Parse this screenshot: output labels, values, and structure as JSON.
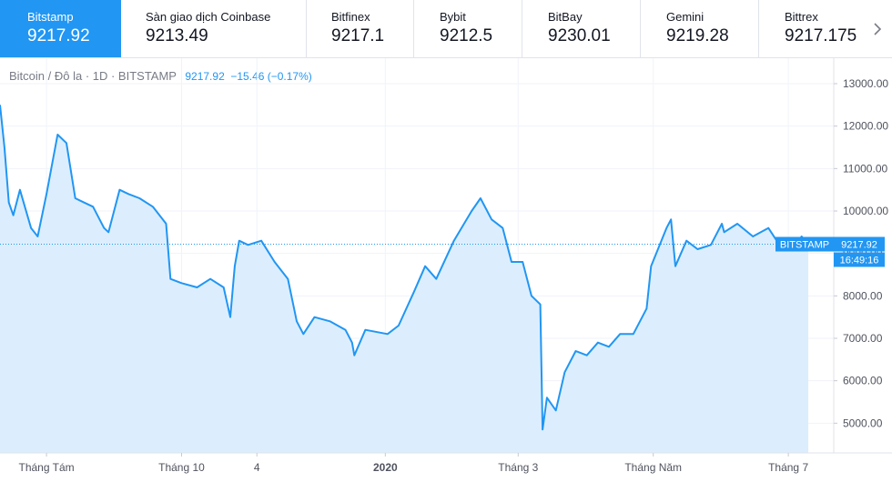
{
  "tabs": [
    {
      "name": "Bitstamp",
      "price": "9217.92",
      "active": true
    },
    {
      "name": "Sàn giao dịch Coinbase",
      "price": "9213.49"
    },
    {
      "name": "Bitfinex",
      "price": "9217.1"
    },
    {
      "name": "Bybit",
      "price": "9212.5"
    },
    {
      "name": "BitBay",
      "price": "9230.01"
    },
    {
      "name": "Gemini",
      "price": "9219.28"
    },
    {
      "name": "Bittrex",
      "price": "9217.175"
    }
  ],
  "next_icon": "chevron-right-icon",
  "legend": {
    "symbol": "Bitcoin / Đô la · 1D · BITSTAMP",
    "last": "9217.92",
    "change": "−15.46 (−0.17%)"
  },
  "price_label": {
    "tag": "BITSTAMP",
    "value": "9217.92",
    "countdown": "16:49:16"
  },
  "colors": {
    "line": "#2196f3",
    "fill": "#dceefd",
    "accent": "#2196f3",
    "axis_text": "#787b86",
    "grid": "#f0f3fa"
  },
  "chart_data": {
    "type": "area",
    "title": "Bitcoin / Đô la · 1D · BITSTAMP",
    "xlabel": "",
    "ylabel": "",
    "ylim": [
      4300,
      13600
    ],
    "xlim": [
      "2019-07-11",
      "2020-07-10"
    ],
    "grid": true,
    "y_ticks": [
      "13000.00",
      "12000.00",
      "11000.00",
      "10000.00",
      "9000.00",
      "8000.00",
      "7000.00",
      "6000.00",
      "5000.00"
    ],
    "y_tick_values": [
      13000,
      12000,
      11000,
      10000,
      9000,
      8000,
      7000,
      6000,
      5000
    ],
    "x_tick_labels": [
      "Tháng Tám",
      "Tháng 10",
      "4",
      "2020",
      "Tháng 3",
      "Tháng Năm",
      "Tháng 7"
    ],
    "x_tick_dates": [
      "2019-08-01",
      "2019-10-01",
      "2019-11-04",
      "2020-01-01",
      "2020-03-01",
      "2020-05-01",
      "2020-07-01"
    ],
    "last_value": 9217.92,
    "series": [
      {
        "x": [
          "2019-07-11",
          "2019-07-13",
          "2019-07-15",
          "2019-07-17",
          "2019-07-20",
          "2019-07-25",
          "2019-07-28",
          "2019-08-01",
          "2019-08-06",
          "2019-08-10",
          "2019-08-14",
          "2019-08-18",
          "2019-08-22",
          "2019-08-27",
          "2019-08-29",
          "2019-09-03",
          "2019-09-07",
          "2019-09-12",
          "2019-09-18",
          "2019-09-24",
          "2019-09-26",
          "2019-10-01",
          "2019-10-08",
          "2019-10-14",
          "2019-10-20",
          "2019-10-23",
          "2019-10-25",
          "2019-10-27",
          "2019-10-31",
          "2019-11-06",
          "2019-11-12",
          "2019-11-18",
          "2019-11-22",
          "2019-11-25",
          "2019-11-30",
          "2019-12-07",
          "2019-12-14",
          "2019-12-17",
          "2019-12-18",
          "2019-12-23",
          "2020-01-02",
          "2020-01-07",
          "2020-01-14",
          "2020-01-19",
          "2020-01-24",
          "2020-02-01",
          "2020-02-09",
          "2020-02-13",
          "2020-02-18",
          "2020-02-23",
          "2020-02-27",
          "2020-03-03",
          "2020-03-07",
          "2020-03-11",
          "2020-03-12",
          "2020-03-14",
          "2020-03-18",
          "2020-03-22",
          "2020-03-27",
          "2020-04-01",
          "2020-04-06",
          "2020-04-11",
          "2020-04-16",
          "2020-04-22",
          "2020-04-28",
          "2020-04-30",
          "2020-05-07",
          "2020-05-09",
          "2020-05-11",
          "2020-05-16",
          "2020-05-21",
          "2020-05-27",
          "2020-06-01",
          "2020-06-02",
          "2020-06-08",
          "2020-06-15",
          "2020-06-22",
          "2020-06-27",
          "2020-07-03",
          "2020-07-07",
          "2020-07-10"
        ],
        "values": [
          12500,
          11500,
          10200,
          9900,
          10500,
          9600,
          9400,
          10400,
          11800,
          11600,
          10300,
          10200,
          10100,
          9600,
          9500,
          10500,
          10400,
          10300,
          10100,
          9700,
          8400,
          8300,
          8200,
          8400,
          8200,
          7500,
          8700,
          9300,
          9200,
          9300,
          8800,
          8400,
          7400,
          7100,
          7500,
          7400,
          7200,
          6900,
          6600,
          7200,
          7100,
          7300,
          8100,
          8700,
          8400,
          9300,
          10000,
          10300,
          9800,
          9600,
          8800,
          8800,
          8000,
          7800,
          4850,
          5600,
          5300,
          6200,
          6700,
          6600,
          6900,
          6800,
          7100,
          7100,
          7700,
          8700,
          9600,
          9800,
          8700,
          9300,
          9100,
          9200,
          9700,
          9500,
          9700,
          9400,
          9600,
          9200,
          9100,
          9400,
          9217.92
        ]
      }
    ]
  }
}
